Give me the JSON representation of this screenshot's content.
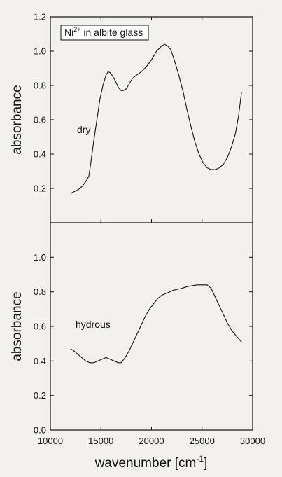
{
  "chart_data": [
    {
      "type": "line",
      "panel": "top",
      "ylabel": "absorbance",
      "legend_box": {
        "prefix": "Ni",
        "superscript": "2+",
        "suffix": " in albite glass"
      },
      "annotation": "dry",
      "xlim": [
        10000,
        30000
      ],
      "ylim": [
        0.0,
        1.2
      ],
      "y_ticks": [
        "0.2",
        "0.4",
        "0.6",
        "0.8",
        "1.0",
        "1.2"
      ],
      "y_tick_values": [
        0.2,
        0.4,
        0.6,
        0.8,
        1.0,
        1.2
      ],
      "series": [
        {
          "x": [
            12000,
            12300,
            12700,
            13100,
            13500,
            13800,
            14000,
            14300,
            14600,
            14900,
            15200,
            15500,
            15700,
            15900,
            16100,
            16400,
            16700,
            17000,
            17200,
            17500,
            17800,
            18100,
            18500,
            19000,
            19500,
            20000,
            20500,
            21000,
            21300,
            21600,
            21900,
            22300,
            22700,
            23100,
            23500,
            23900,
            24300,
            24700,
            25100,
            25500,
            25900,
            26300,
            26700,
            27100,
            27500,
            27900,
            28300,
            28600,
            28900
          ],
          "y": [
            0.17,
            0.18,
            0.19,
            0.21,
            0.24,
            0.27,
            0.35,
            0.48,
            0.6,
            0.72,
            0.8,
            0.86,
            0.88,
            0.875,
            0.86,
            0.83,
            0.79,
            0.77,
            0.77,
            0.78,
            0.81,
            0.84,
            0.86,
            0.88,
            0.91,
            0.95,
            1.0,
            1.03,
            1.04,
            1.03,
            1.01,
            0.94,
            0.86,
            0.77,
            0.66,
            0.56,
            0.47,
            0.4,
            0.35,
            0.32,
            0.31,
            0.31,
            0.32,
            0.34,
            0.38,
            0.44,
            0.52,
            0.62,
            0.76
          ]
        }
      ]
    },
    {
      "type": "line",
      "panel": "bottom",
      "ylabel": "absorbance",
      "annotation": "hydrous",
      "xlabel": "wavenumber [cm",
      "xlabel_sup": "-1",
      "xlabel_end": "]",
      "xlim": [
        10000,
        30000
      ],
      "ylim": [
        0.0,
        1.2
      ],
      "x_ticks": [
        "10000",
        "15000",
        "20000",
        "25000",
        "30000"
      ],
      "x_tick_values": [
        10000,
        15000,
        20000,
        25000,
        30000
      ],
      "y_ticks": [
        "0.0",
        "0.2",
        "0.4",
        "0.6",
        "0.8",
        "1.0"
      ],
      "y_tick_values": [
        0.0,
        0.2,
        0.4,
        0.6,
        0.8,
        1.0
      ],
      "series": [
        {
          "x": [
            12000,
            12300,
            12700,
            13100,
            13500,
            13900,
            14300,
            14700,
            15100,
            15500,
            15900,
            16300,
            16700,
            17000,
            17400,
            17800,
            18200,
            18600,
            19000,
            19400,
            19800,
            20200,
            20600,
            21000,
            21400,
            21800,
            22200,
            22600,
            23000,
            23500,
            24000,
            24500,
            25000,
            25500,
            25900,
            26300,
            26700,
            27100,
            27500,
            27900,
            28300,
            28600,
            28900
          ],
          "y": [
            0.47,
            0.46,
            0.44,
            0.42,
            0.4,
            0.39,
            0.39,
            0.4,
            0.41,
            0.42,
            0.41,
            0.4,
            0.39,
            0.39,
            0.42,
            0.46,
            0.51,
            0.56,
            0.61,
            0.66,
            0.7,
            0.73,
            0.76,
            0.78,
            0.79,
            0.8,
            0.81,
            0.815,
            0.82,
            0.83,
            0.835,
            0.84,
            0.84,
            0.84,
            0.82,
            0.77,
            0.72,
            0.67,
            0.62,
            0.58,
            0.55,
            0.53,
            0.51
          ]
        }
      ]
    }
  ]
}
